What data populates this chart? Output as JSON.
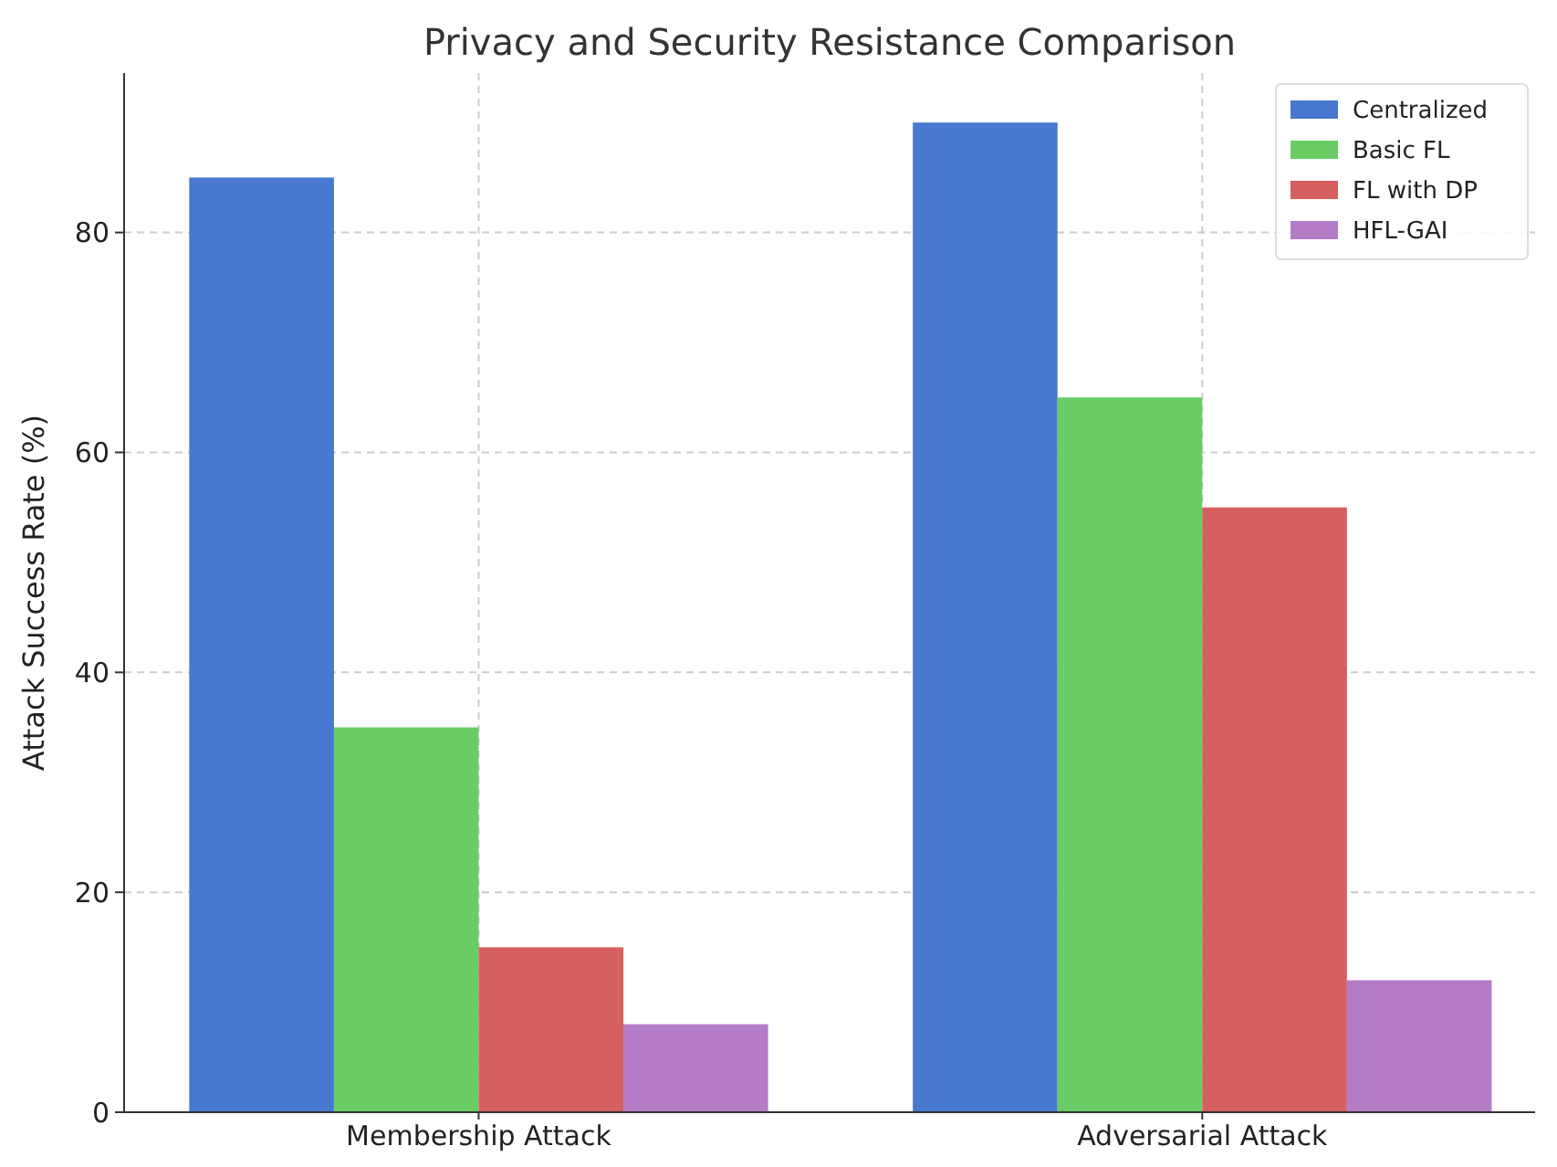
{
  "chart_data": {
    "type": "bar",
    "title": "Privacy and Security Resistance Comparison",
    "ylabel": "Attack Success Rate (%)",
    "categories": [
      "Membership Attack",
      "Adversarial Attack"
    ],
    "series": [
      {
        "name": "Centralized",
        "color": "#4878d0",
        "values": [
          85,
          90
        ]
      },
      {
        "name": "Basic FL",
        "color": "#6acc64",
        "values": [
          35,
          65
        ]
      },
      {
        "name": "FL with DP",
        "color": "#d65f5f",
        "values": [
          15,
          55
        ]
      },
      {
        "name": "HFL-GAI",
        "color": "#b47cc7",
        "values": [
          8,
          12
        ]
      }
    ],
    "ylim": [
      0,
      94.5
    ],
    "yticks": [
      0,
      20,
      40,
      60,
      80
    ],
    "grid": true,
    "legend": "top right"
  }
}
